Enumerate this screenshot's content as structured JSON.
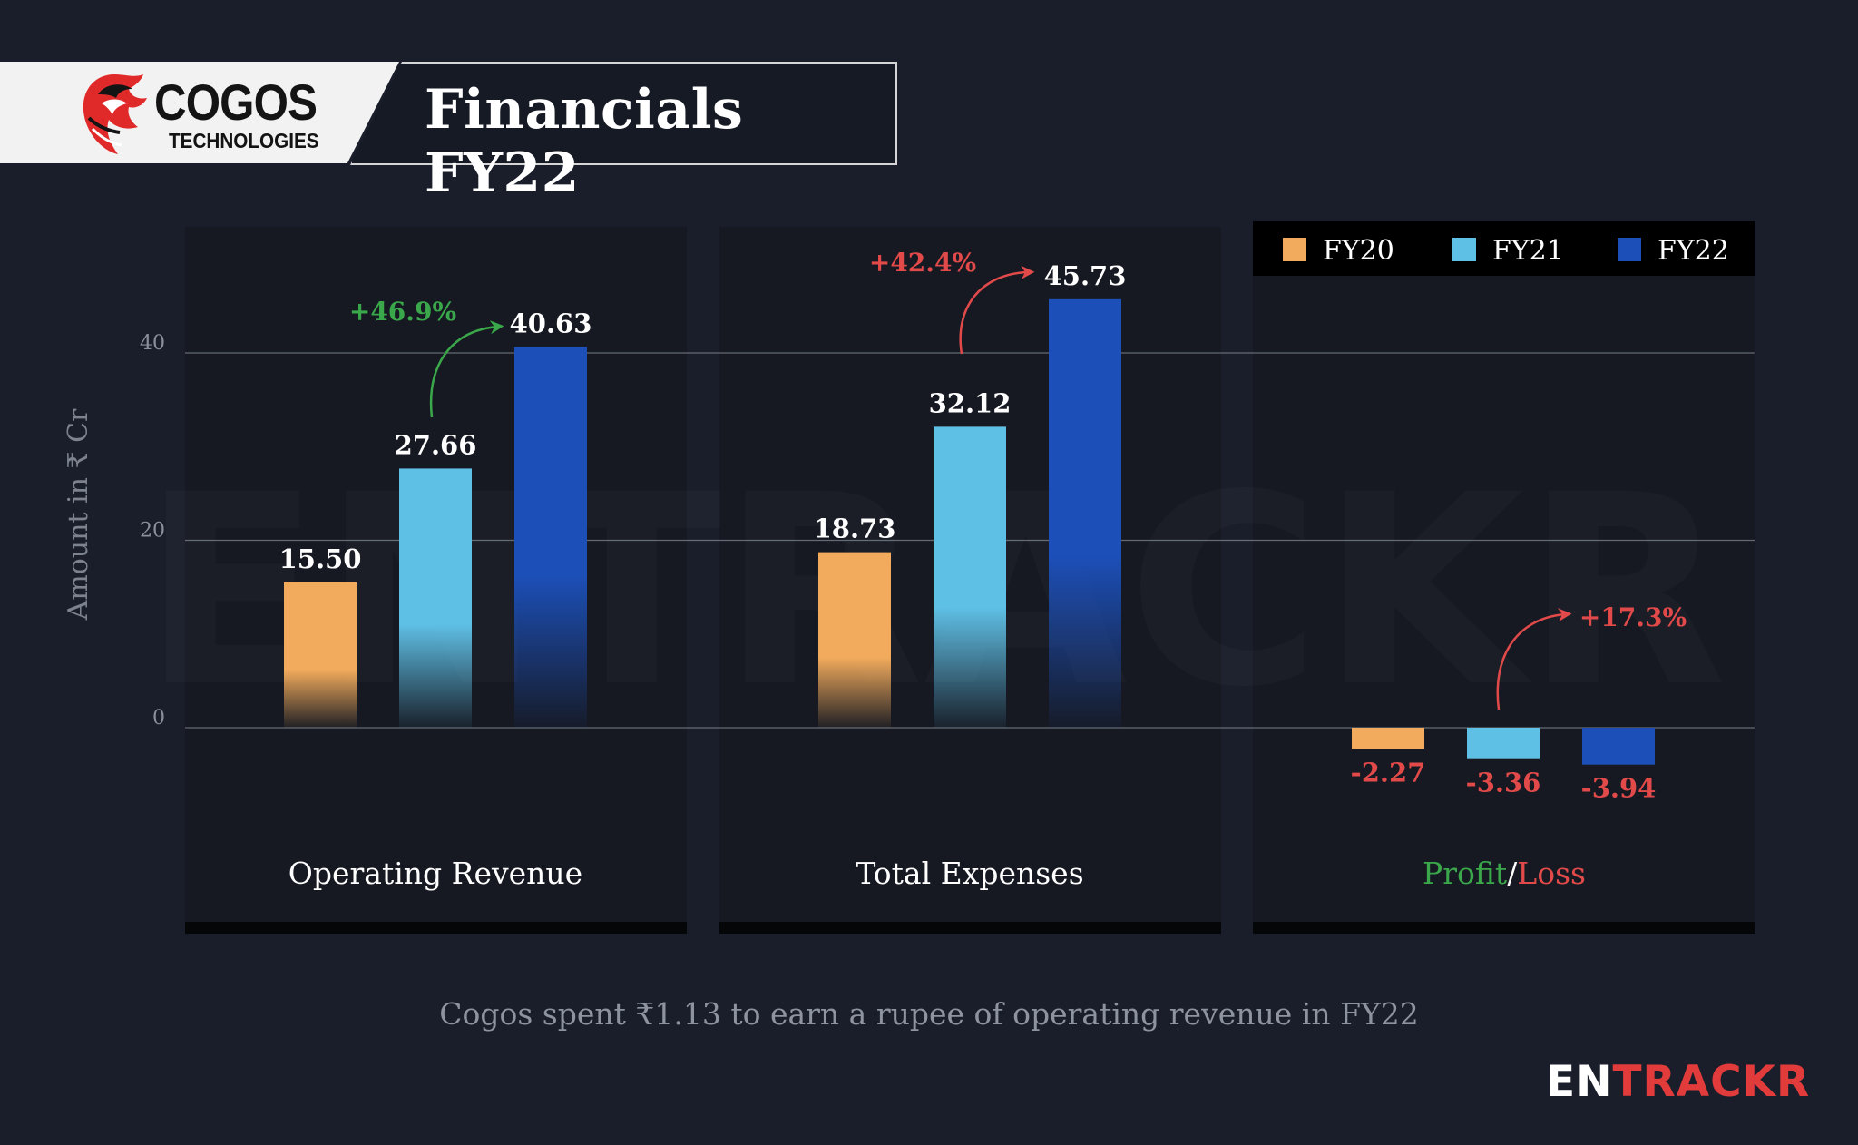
{
  "header": {
    "logo_name": "COGOS",
    "logo_sub": "TECHNOLOGIES",
    "title": "Financials FY22"
  },
  "colors": {
    "background": "#1a1e2a",
    "fy20": "#f2ab5c",
    "fy21": "#5fc0e6",
    "fy22": "#1c4fb8",
    "growth_green": "#3aa84a",
    "growth_red": "#e24a4a"
  },
  "chart_data": {
    "type": "bar",
    "ylabel": "Amount in ₹ Cr",
    "ylim": [
      -7.5,
      46
    ],
    "yticks": [
      0,
      20,
      40
    ],
    "grid": true,
    "legend_position": "top-right",
    "series_names": [
      "FY20",
      "FY21",
      "FY22"
    ],
    "groups": [
      {
        "label": "Operating Revenue",
        "values": [
          15.5,
          27.66,
          40.63
        ],
        "value_labels": [
          "15.50",
          "27.66",
          "40.63"
        ],
        "growth": "+46.9%",
        "growth_color": "green"
      },
      {
        "label": "Total Expenses",
        "values": [
          18.73,
          32.12,
          45.73
        ],
        "value_labels": [
          "18.73",
          "32.12",
          "45.73"
        ],
        "growth": "+42.4%",
        "growth_color": "red"
      },
      {
        "label_profit": "Profit",
        "label_sep": "/",
        "label_loss": "Loss",
        "values": [
          -2.27,
          -3.36,
          -3.94
        ],
        "value_labels": [
          "-2.27",
          "-3.36",
          "-3.94"
        ],
        "growth": "+17.3%",
        "growth_color": "red"
      }
    ]
  },
  "footnote": "Cogos spent ₹1.13 to earn a rupee of operating revenue in FY22",
  "brand": {
    "part1": "EN",
    "part2": "TRACKR"
  }
}
